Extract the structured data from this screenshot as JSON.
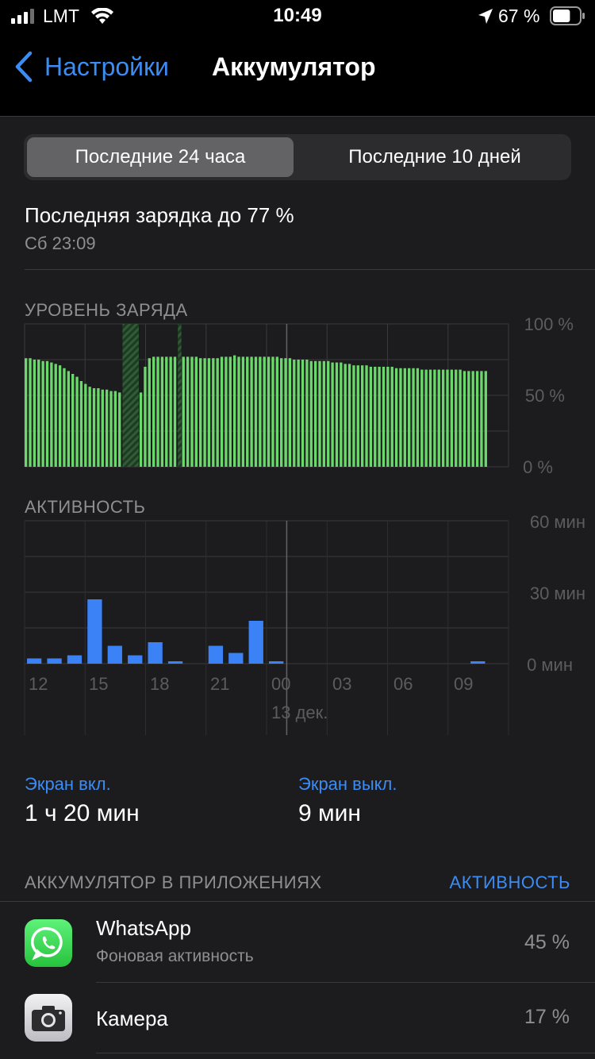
{
  "status_bar": {
    "carrier": "LMT",
    "time": "10:49",
    "battery_percent": "67 %",
    "battery_level": 0.67
  },
  "nav": {
    "back_label": "Настройки",
    "title": "Аккумулятор"
  },
  "segments": {
    "options": [
      "Последние 24 часа",
      "Последние 10 дней"
    ],
    "selected": 0
  },
  "last_charge": {
    "title": "Последняя зарядка до 77 %",
    "time": "Сб 23:09"
  },
  "battery_chart": {
    "label": "УРОВЕНЬ ЗАРЯДА",
    "y_ticks": [
      "100 %",
      "50 %",
      "0 %"
    ]
  },
  "activity_chart": {
    "label": "АКТИВНОСТЬ",
    "y_ticks": [
      "60 мин",
      "30 мин",
      "0 мин"
    ],
    "x_ticks": [
      "12",
      "15",
      "18",
      "21",
      "00",
      "03",
      "06",
      "09"
    ],
    "date_label": "13 дек."
  },
  "chart_data": [
    {
      "type": "bar",
      "title": "УРОВЕНЬ ЗАРЯДА",
      "ylim": [
        0,
        100
      ],
      "y_unit": "%",
      "charging_color": "#2f5c35",
      "bar_color": "#6bd86b",
      "values": [
        76,
        76,
        75,
        75,
        74,
        74,
        73,
        72,
        71,
        69,
        67,
        65,
        63,
        60,
        58,
        56,
        55,
        55,
        54,
        54,
        53,
        53,
        52,
        51,
        50,
        49,
        49,
        52,
        70,
        76,
        77,
        77,
        77,
        77,
        77,
        77,
        77,
        77,
        77,
        77,
        77,
        76,
        76,
        76,
        76,
        76,
        77,
        77,
        77,
        78,
        77,
        77,
        77,
        77,
        77,
        77,
        77,
        77,
        77,
        77,
        76,
        76,
        76,
        75,
        75,
        75,
        75,
        74,
        74,
        74,
        74,
        74,
        73,
        73,
        73,
        72,
        72,
        71,
        71,
        71,
        71,
        70,
        70,
        70,
        70,
        70,
        70,
        69,
        69,
        69,
        69,
        69,
        69,
        68,
        68,
        68,
        68,
        68,
        68,
        68,
        68,
        68,
        68,
        67,
        67,
        67,
        67,
        67,
        67
      ],
      "charging_intervals": [
        [
          23,
          26
        ],
        [
          36,
          36
        ]
      ]
    },
    {
      "type": "bar",
      "title": "АКТИВНОСТЬ",
      "ylim": [
        0,
        60
      ],
      "y_unit": "мин",
      "bar_color": "#3b82f6",
      "categories": [
        "11",
        "12",
        "13",
        "14",
        "15",
        "16",
        "17",
        "18",
        "19",
        "20",
        "21",
        "22",
        "23",
        "00",
        "01",
        "02",
        "03",
        "04",
        "05",
        "06",
        "07",
        "08",
        "09",
        "10"
      ],
      "values": [
        2.2,
        2.2,
        3.5,
        27,
        7.5,
        3.5,
        9,
        1,
        0,
        7.5,
        4.5,
        18,
        1,
        0,
        0,
        0,
        0,
        0,
        0,
        0,
        0,
        0,
        1,
        0
      ]
    }
  ],
  "screen": {
    "on_label": "Экран вкл.",
    "on_value": "1 ч 20 мин",
    "off_label": "Экран выкл.",
    "off_value": "9 мин"
  },
  "apps_section": {
    "title": "АККУМУЛЯТОР В ПРИЛОЖЕНИЯХ",
    "action": "АКТИВНОСТЬ",
    "items": [
      {
        "name": "WhatsApp",
        "subtitle": "Фоновая активность",
        "percent": "45 %",
        "icon": "whatsapp-icon",
        "icon_color": "#25d366"
      },
      {
        "name": "Камера",
        "subtitle": "",
        "percent": "17 %",
        "icon": "camera-icon",
        "icon_color": "#e5e5ea"
      }
    ]
  },
  "colors": {
    "accent": "#3b8cf5",
    "background": "#1c1c1e"
  }
}
